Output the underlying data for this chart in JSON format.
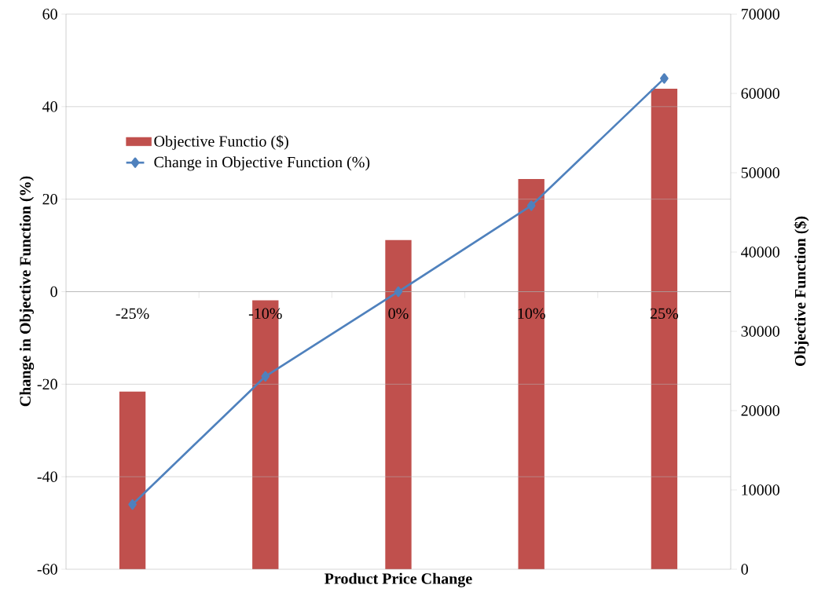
{
  "chart_data": {
    "type": "bar",
    "categories": [
      "-25%",
      "-10%",
      "0%",
      "10%",
      "25%"
    ],
    "xlabel": "Product Price Change",
    "ylabel": "Change in Objective Function (%)",
    "y2label": "Objective Function ($)",
    "ylim": [
      -60,
      60
    ],
    "yticks": [
      -60,
      -40,
      -20,
      0,
      20,
      40,
      60
    ],
    "y2lim": [
      0,
      70000
    ],
    "y2ticks": [
      0,
      10000,
      20000,
      30000,
      40000,
      50000,
      60000,
      70000
    ],
    "grid": "y",
    "legend": "top left",
    "marker": "diamond",
    "series": [
      {
        "name": "Objective Functio ($)",
        "axis": "y2",
        "color": "#c0504d",
        "values": [
          22400,
          33900,
          41500,
          49200,
          60600
        ]
      },
      {
        "name": "Change in Objective Function (%)",
        "type": "line",
        "axis": "y",
        "color": "#4f81bd",
        "values": [
          -46,
          -18.3,
          0,
          18.6,
          46.1
        ]
      }
    ]
  }
}
